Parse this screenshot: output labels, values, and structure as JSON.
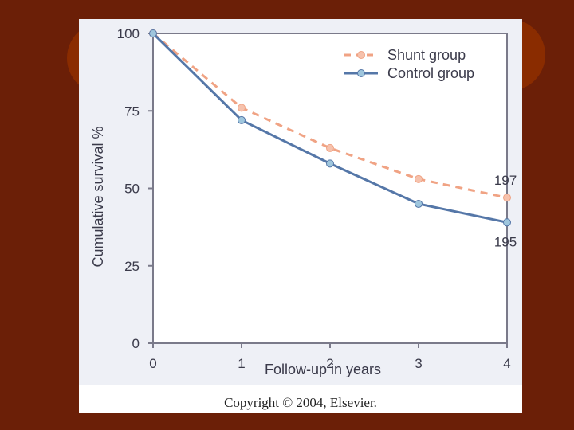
{
  "chart_data": {
    "type": "line",
    "x": [
      0,
      1,
      2,
      3,
      4
    ],
    "series": [
      {
        "name": "Shunt group",
        "values": [
          100,
          76,
          63,
          53,
          47
        ],
        "color": "#f0a384",
        "style": "dashed",
        "end_label": "197"
      },
      {
        "name": "Control group",
        "values": [
          100,
          72,
          58,
          45,
          39
        ],
        "color": "#5577a8",
        "style": "solid",
        "end_label": "195"
      }
    ],
    "xlabel": "Follow-up in years",
    "ylabel": "Cumulative survival %",
    "xlim": [
      0,
      4
    ],
    "ylim": [
      0,
      100
    ],
    "xticks": [
      "0",
      "1",
      "2",
      "3",
      "4"
    ],
    "yticks": [
      "0",
      "25",
      "50",
      "75",
      "100"
    ],
    "legend_position": "top-right",
    "grid": false
  },
  "copyright": "Copyright © 2004, Elsevier.",
  "colors": {
    "background": "#6b1f07",
    "plot_background": "#eef0f6",
    "axis": "#7a7a8a",
    "marker_fill_shunt": "#f6c2ad",
    "marker_fill_control": "#9fc6dd"
  }
}
